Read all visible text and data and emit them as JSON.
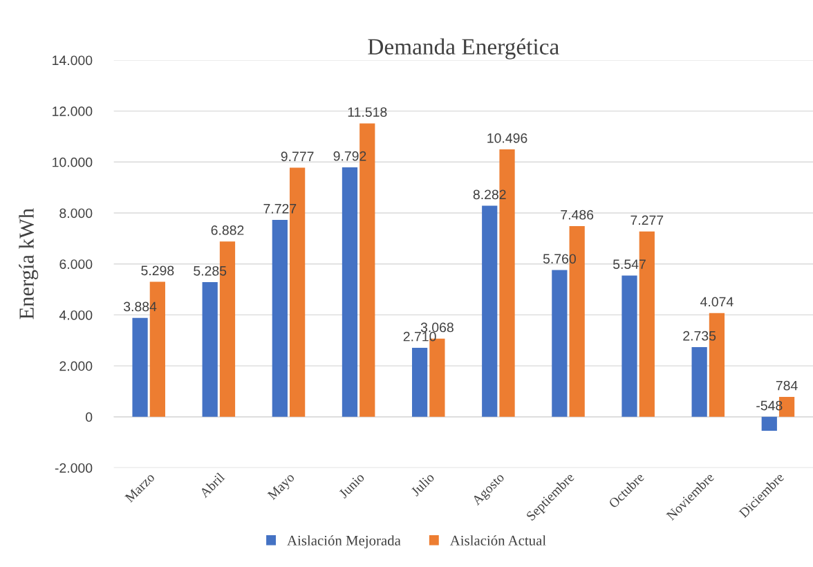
{
  "chart_data": {
    "type": "bar",
    "title": "Demanda Energética",
    "ylabel": "Energía kWh",
    "categories": [
      "Marzo",
      "Abril",
      "Mayo",
      "Junio",
      "Julio",
      "Agosto",
      "Septiembre",
      "Octubre",
      "Noviembre",
      "Diciembre"
    ],
    "series": [
      {
        "name": "Aislación Mejorada",
        "color": "#4472c4",
        "values": [
          3884,
          5285,
          7727,
          9792,
          2710,
          8282,
          5760,
          5547,
          2735,
          -548
        ],
        "value_labels": [
          "3.884",
          "5.285",
          "7.727",
          "9.792",
          "2.710",
          "8.282",
          "5.760",
          "5.547",
          "2.735",
          "-548"
        ]
      },
      {
        "name": "Aislación Actual",
        "color": "#ed7d31",
        "values": [
          5298,
          6882,
          9777,
          11518,
          3068,
          10496,
          7486,
          7277,
          4074,
          784
        ],
        "value_labels": [
          "5.298",
          "6.882",
          "9.777",
          "11.518",
          "3.068",
          "10.496",
          "7.486",
          "7.277",
          "4.074",
          "784"
        ]
      }
    ],
    "ylim": [
      -2000,
      14000
    ],
    "yticks": [
      {
        "value": -2000,
        "label": "-2.000"
      },
      {
        "value": 0,
        "label": "0"
      },
      {
        "value": 2000,
        "label": "2.000"
      },
      {
        "value": 4000,
        "label": "4.000"
      },
      {
        "value": 6000,
        "label": "6.000"
      },
      {
        "value": 8000,
        "label": "8.000"
      },
      {
        "value": 10000,
        "label": "10.000"
      },
      {
        "value": 12000,
        "label": "12.000"
      },
      {
        "value": 14000,
        "label": "14.000"
      }
    ],
    "grid": "y",
    "legend": "bottom"
  }
}
